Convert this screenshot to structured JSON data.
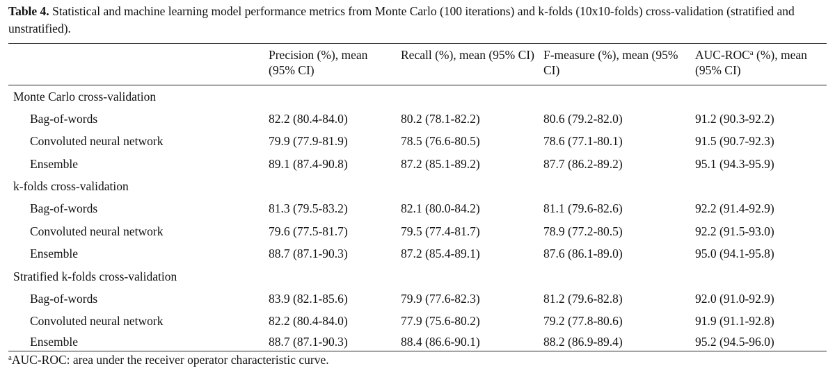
{
  "caption": {
    "label": "Table 4.",
    "text": " Statistical and machine learning model performance metrics from Monte Carlo (100 iterations) and k-folds (10x10-folds) cross-validation (stratified and unstratified)."
  },
  "headers": {
    "col0": "",
    "precision": "Precision (%), mean (95% CI)",
    "recall": "Recall (%), mean (95% CI)",
    "fmeasure": "F-measure (%), mean (95% CI)",
    "auc_prefix": "AUC-ROC",
    "auc_sup": "a",
    "auc_suffix": " (%), mean (95% CI)"
  },
  "sections": [
    {
      "title": "Monte Carlo cross-validation",
      "rows": [
        {
          "model": "Bag-of-words",
          "precision": "82.2 (80.4-84.0)",
          "recall": "80.2 (78.1-82.2)",
          "fmeasure": "80.6 (79.2-82.0)",
          "auc": "91.2 (90.3-92.2)"
        },
        {
          "model": "Convoluted neural network",
          "precision": "79.9 (77.9-81.9)",
          "recall": "78.5 (76.6-80.5)",
          "fmeasure": "78.6 (77.1-80.1)",
          "auc": "91.5 (90.7-92.3)"
        },
        {
          "model": "Ensemble",
          "precision": "89.1 (87.4-90.8)",
          "recall": "87.2 (85.1-89.2)",
          "fmeasure": "87.7 (86.2-89.2)",
          "auc": "95.1 (94.3-95.9)"
        }
      ]
    },
    {
      "title": "k-folds cross-validation",
      "rows": [
        {
          "model": "Bag-of-words",
          "precision": "81.3 (79.5-83.2)",
          "recall": "82.1 (80.0-84.2)",
          "fmeasure": "81.1 (79.6-82.6)",
          "auc": "92.2 (91.4-92.9)"
        },
        {
          "model": "Convoluted neural network",
          "precision": "79.6 (77.5-81.7)",
          "recall": "79.5 (77.4-81.7)",
          "fmeasure": "78.9 (77.2-80.5)",
          "auc": "92.2 (91.5-93.0)"
        },
        {
          "model": "Ensemble",
          "precision": "88.7 (87.1-90.3)",
          "recall": "87.2 (85.4-89.1)",
          "fmeasure": "87.6 (86.1-89.0)",
          "auc": "95.0 (94.1-95.8)"
        }
      ]
    },
    {
      "title": "Stratified k-folds cross-validation",
      "rows": [
        {
          "model": "Bag-of-words",
          "precision": "83.9 (82.1-85.6)",
          "recall": "79.9 (77.6-82.3)",
          "fmeasure": "81.2 (79.6-82.8)",
          "auc": "92.0 (91.0-92.9)"
        },
        {
          "model": "Convoluted neural network",
          "precision": "82.2 (80.4-84.0)",
          "recall": "77.9 (75.6-80.2)",
          "fmeasure": "79.2 (77.8-80.6)",
          "auc": "91.9 (91.1-92.8)"
        },
        {
          "model": "Ensemble",
          "precision": "88.7 (87.1-90.3)",
          "recall": "88.4 (86.6-90.1)",
          "fmeasure": "88.2 (86.9-89.4)",
          "auc": "95.2 (94.5-96.0)"
        }
      ]
    }
  ],
  "footnote": {
    "sup": "a",
    "text": "AUC-ROC: area under the receiver operator characteristic curve."
  }
}
